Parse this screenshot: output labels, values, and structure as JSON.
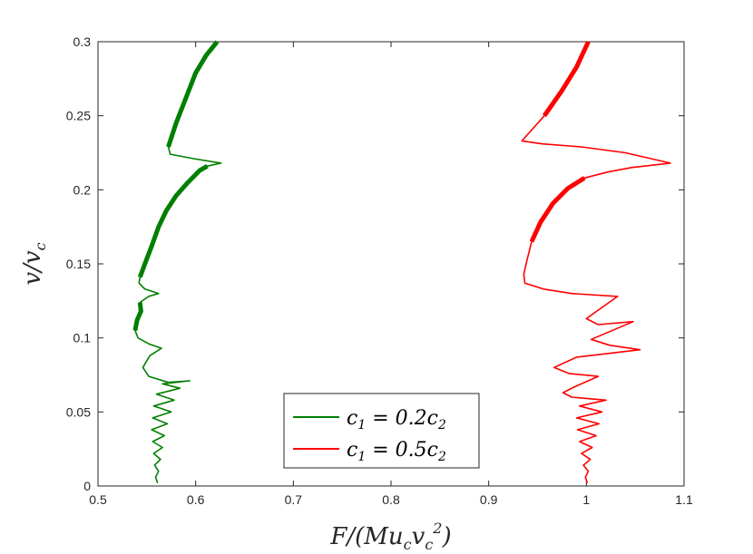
{
  "chart_data": {
    "type": "line",
    "xlabel": "F/(Mu_c v_c^2)",
    "ylabel": "v/v_c",
    "xlim": [
      0.5,
      1.1
    ],
    "ylim": [
      0,
      0.3
    ],
    "xticks": [
      "0.5",
      "0.6",
      "0.7",
      "0.8",
      "0.9",
      "1",
      "1.1"
    ],
    "yticks": [
      "0",
      "0.05",
      "0.1",
      "0.15",
      "0.2",
      "0.25",
      "0.3"
    ],
    "grid": false,
    "legend": "bottom-center",
    "series": [
      {
        "name": "c1 = 0.2c2",
        "color": "#007f00",
        "points": [
          [
            0.561,
            0.002
          ],
          [
            0.559,
            0.006
          ],
          [
            0.562,
            0.01
          ],
          [
            0.558,
            0.014
          ],
          [
            0.564,
            0.018
          ],
          [
            0.557,
            0.022
          ],
          [
            0.566,
            0.026
          ],
          [
            0.556,
            0.03
          ],
          [
            0.568,
            0.034
          ],
          [
            0.555,
            0.038
          ],
          [
            0.571,
            0.042
          ],
          [
            0.556,
            0.046
          ],
          [
            0.575,
            0.05
          ],
          [
            0.557,
            0.054
          ],
          [
            0.578,
            0.058
          ],
          [
            0.56,
            0.062
          ],
          [
            0.584,
            0.066
          ],
          [
            0.566,
            0.069
          ],
          [
            0.594,
            0.071
          ],
          [
            0.572,
            0.07
          ],
          [
            0.552,
            0.074
          ],
          [
            0.546,
            0.08
          ],
          [
            0.553,
            0.088
          ],
          [
            0.565,
            0.093
          ],
          [
            0.552,
            0.096
          ],
          [
            0.541,
            0.1
          ],
          [
            0.538,
            0.105
          ],
          [
            0.54,
            0.112
          ],
          [
            0.544,
            0.118
          ],
          [
            0.543,
            0.124
          ],
          [
            0.552,
            0.128
          ],
          [
            0.562,
            0.13
          ],
          [
            0.548,
            0.133
          ],
          [
            0.542,
            0.137
          ],
          [
            0.543,
            0.141
          ],
          [
            0.548,
            0.15
          ],
          [
            0.555,
            0.162
          ],
          [
            0.562,
            0.175
          ],
          [
            0.57,
            0.186
          ],
          [
            0.58,
            0.196
          ],
          [
            0.592,
            0.205
          ],
          [
            0.604,
            0.213
          ],
          [
            0.612,
            0.216
          ],
          [
            0.626,
            0.218
          ],
          [
            0.598,
            0.221
          ],
          [
            0.574,
            0.224
          ],
          [
            0.572,
            0.229
          ],
          [
            0.58,
            0.245
          ],
          [
            0.59,
            0.262
          ],
          [
            0.6,
            0.279
          ],
          [
            0.611,
            0.291
          ],
          [
            0.622,
            0.3
          ]
        ],
        "bold_segments": [
          [
            0.538,
            0.105,
            0.543,
            0.124
          ],
          [
            0.543,
            0.141,
            0.612,
            0.216
          ],
          [
            0.572,
            0.229,
            0.622,
            0.3
          ]
        ]
      },
      {
        "name": "c1 = 0.5c2",
        "color": "#ff0000",
        "points": [
          [
            1.001,
            0.002
          ],
          [
            0.999,
            0.006
          ],
          [
            1.002,
            0.01
          ],
          [
            0.997,
            0.014
          ],
          [
            1.004,
            0.018
          ],
          [
            0.995,
            0.022
          ],
          [
            1.006,
            0.026
          ],
          [
            0.993,
            0.03
          ],
          [
            1.01,
            0.034
          ],
          [
            0.991,
            0.038
          ],
          [
            1.013,
            0.042
          ],
          [
            0.99,
            0.046
          ],
          [
            1.016,
            0.05
          ],
          [
            0.993,
            0.054
          ],
          [
            1.02,
            0.058
          ],
          [
            0.985,
            0.06
          ],
          [
            0.976,
            0.063
          ],
          [
            0.988,
            0.067
          ],
          [
            1.012,
            0.074
          ],
          [
            0.982,
            0.076
          ],
          [
            0.967,
            0.08
          ],
          [
            0.99,
            0.087
          ],
          [
            1.055,
            0.092
          ],
          [
            1.024,
            0.095
          ],
          [
            1.005,
            0.099
          ],
          [
            1.048,
            0.111
          ],
          [
            1.012,
            0.109
          ],
          [
            1.0,
            0.113
          ],
          [
            1.032,
            0.128
          ],
          [
            0.985,
            0.13
          ],
          [
            0.956,
            0.133
          ],
          [
            0.937,
            0.137
          ],
          [
            0.936,
            0.143
          ],
          [
            0.939,
            0.152
          ],
          [
            0.944,
            0.165
          ],
          [
            0.953,
            0.178
          ],
          [
            0.966,
            0.191
          ],
          [
            0.981,
            0.201
          ],
          [
            0.998,
            0.208
          ],
          [
            1.022,
            0.212
          ],
          [
            1.046,
            0.215
          ],
          [
            1.086,
            0.218
          ],
          [
            1.04,
            0.225
          ],
          [
            0.995,
            0.229
          ],
          [
            0.955,
            0.231
          ],
          [
            0.934,
            0.233
          ],
          [
            0.957,
            0.25
          ],
          [
            0.975,
            0.267
          ],
          [
            0.99,
            0.283
          ],
          [
            1.002,
            0.3
          ]
        ],
        "bold_segments": [
          [
            0.939,
            0.158,
            0.996,
            0.21
          ],
          [
            0.945,
            0.25,
            1.002,
            0.3
          ]
        ]
      }
    ]
  }
}
